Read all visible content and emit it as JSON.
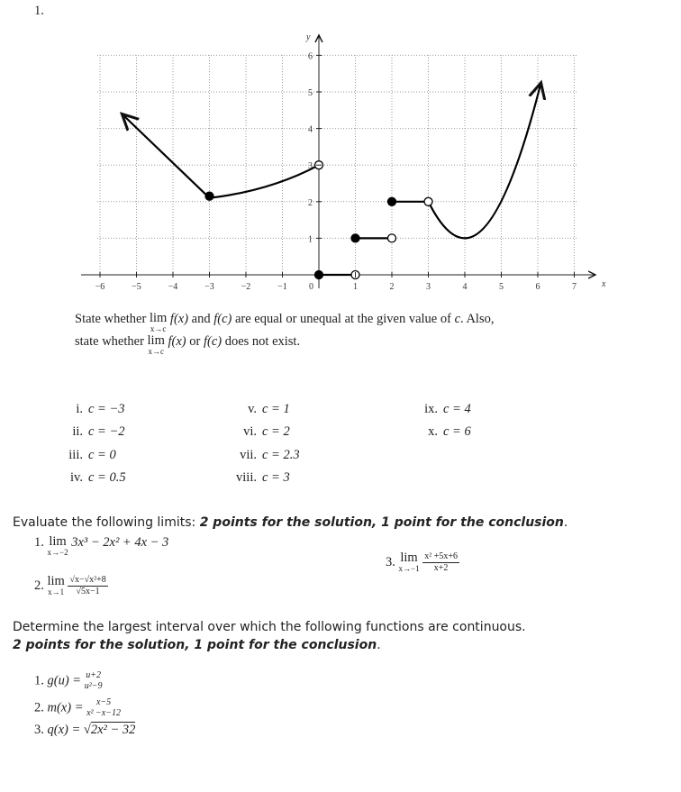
{
  "problem_number": "1.",
  "graph": {
    "x_axis_label": "x",
    "y_axis_label": "y",
    "origin_label": "0",
    "x_tick_labels": [
      "−6",
      "−5",
      "−4",
      "−3",
      "−2",
      "−1",
      "1",
      "2",
      "3",
      "4",
      "5",
      "6",
      "7"
    ],
    "y_tick_labels": [
      "1",
      "2",
      "3",
      "4",
      "5",
      "6"
    ]
  },
  "instructions": {
    "line1": [
      "State whether",
      "lim",
      "x→c",
      "f(x)",
      "and",
      "f(c)",
      "are equal or unequal at the given value of",
      "c",
      ". Also,"
    ],
    "line2": [
      "state whether",
      "lim",
      "x→c",
      "f(x)",
      "or",
      "f(c)",
      "does not exist."
    ]
  },
  "values": [
    [
      "i.",
      "c = −3"
    ],
    [
      "ii.",
      "c = −2"
    ],
    [
      "iii.",
      "c = 0"
    ],
    [
      "iv.",
      "c = 0.5"
    ],
    [
      "v.",
      "c = 1"
    ],
    [
      "vi.",
      "c = 2"
    ],
    [
      "vii.",
      "c = 2.3"
    ],
    [
      "viii.",
      "c = 3"
    ],
    [
      "ix.",
      "c = 4"
    ],
    [
      "x.",
      "c = 6"
    ]
  ],
  "limits": {
    "heading": "Evaluate the following limits: ",
    "emphasis": "2 points for the solution, 1 point for the conclusion",
    "end": ".",
    "items": [
      {
        "number": "1.",
        "lim": "lim",
        "sub": "x→−2",
        "expression": "3x³ − 2x² + 4x − 3"
      },
      {
        "number": "2.",
        "lim": "lim",
        "sub": "x→1",
        "numerator": "√x−√x²+8",
        "denominator": "√5x−1"
      },
      {
        "number": "3.",
        "lim": "lim",
        "sub": "x→−1",
        "numerator": "x² +5x+6",
        "denominator": "x+2"
      }
    ]
  },
  "continuity": {
    "heading": "Determine the largest interval over which the following functions are continuous.",
    "emphasis": "2 points for the solution, 1 point for the conclusion",
    "end": ".",
    "items": [
      {
        "number": "1.",
        "name": "g(u) =",
        "numerator": "u+2",
        "denominator": "u²−9"
      },
      {
        "number": "2.",
        "name": "m(x) =",
        "numerator": "x−5",
        "denominator": "x² −x−12"
      },
      {
        "number": "3.",
        "name": "q(x) =",
        "radical": "√",
        "radicand": "2x² − 32"
      }
    ]
  }
}
